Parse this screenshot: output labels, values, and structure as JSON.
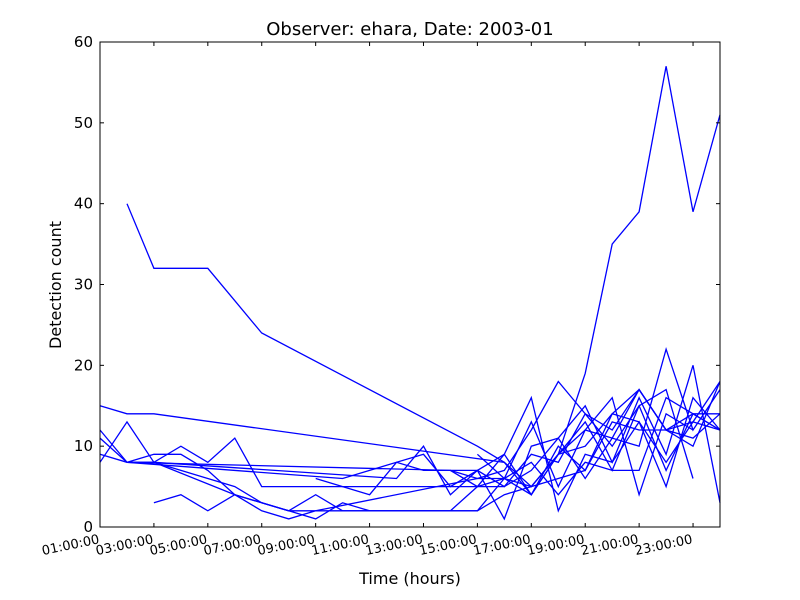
{
  "chart_data": {
    "type": "line",
    "title": "Observer: ehara, Date: 2003-01",
    "xlabel": "Time (hours)",
    "ylabel": "Detection count",
    "xlim": [
      1,
      24
    ],
    "ylim": [
      0,
      60
    ],
    "yticks": [
      0,
      10,
      20,
      30,
      40,
      50,
      60
    ],
    "xticks": [
      {
        "value": 1,
        "label": "01:00:00"
      },
      {
        "value": 3,
        "label": "03:00:00"
      },
      {
        "value": 5,
        "label": "05:00:00"
      },
      {
        "value": 7,
        "label": "07:00:00"
      },
      {
        "value": 9,
        "label": "09:00:00"
      },
      {
        "value": 11,
        "label": "11:00:00"
      },
      {
        "value": 13,
        "label": "13:00:00"
      },
      {
        "value": 15,
        "label": "15:00:00"
      },
      {
        "value": 17,
        "label": "17:00:00"
      },
      {
        "value": 19,
        "label": "19:00:00"
      },
      {
        "value": 21,
        "label": "21:00:00"
      },
      {
        "value": 23,
        "label": "23:00:00"
      }
    ],
    "grid": false,
    "line_color": "#0000ff",
    "series": [
      {
        "x": [
          2,
          3,
          4,
          5,
          6,
          7,
          15,
          16,
          17,
          18,
          19,
          20,
          21,
          22,
          23,
          24
        ],
        "y": [
          40,
          32,
          32,
          32,
          28,
          24,
          10,
          8,
          5,
          9,
          19,
          35,
          39,
          57,
          39,
          51
        ]
      },
      {
        "x": [
          1,
          2,
          3,
          16,
          17,
          18,
          19,
          20,
          21,
          22,
          23,
          24
        ],
        "y": [
          15,
          14,
          14,
          8,
          4,
          10,
          7,
          14,
          17,
          12,
          14,
          12
        ]
      },
      {
        "x": [
          1,
          2,
          3,
          4,
          5,
          6,
          7,
          8,
          9,
          15,
          16,
          17,
          18,
          19,
          20,
          21,
          22,
          23,
          24
        ],
        "y": [
          12,
          8,
          9,
          9,
          7,
          4,
          2,
          1,
          2,
          6,
          7,
          12,
          18,
          14,
          12,
          17,
          12,
          13,
          18
        ]
      },
      {
        "x": [
          1,
          2,
          3,
          4,
          5,
          6,
          7,
          15,
          16,
          17,
          18,
          19,
          20,
          21,
          22,
          23,
          24
        ],
        "y": [
          8,
          13,
          8,
          10,
          8,
          11,
          5,
          5,
          5,
          7,
          11,
          15,
          8,
          16,
          9,
          20,
          3
        ]
      },
      {
        "x": [
          3,
          4,
          5,
          6,
          7,
          8,
          9,
          10,
          11,
          12,
          13,
          14,
          15,
          16,
          17,
          18,
          19,
          20,
          21,
          22,
          23
        ],
        "y": [
          3,
          4,
          2,
          4,
          3,
          2,
          2,
          2,
          2,
          2,
          2,
          2,
          2,
          6,
          5,
          9,
          13,
          7,
          15,
          17,
          6
        ]
      },
      {
        "x": [
          1,
          2,
          14,
          15,
          16,
          17,
          18,
          19,
          20,
          21,
          22,
          23,
          24
        ],
        "y": [
          11,
          8,
          7,
          6,
          6,
          8,
          4,
          8,
          7,
          7,
          16,
          14,
          12
        ]
      },
      {
        "x": [
          1,
          2,
          3,
          6,
          7,
          8,
          9,
          10,
          11,
          12,
          13,
          14,
          15,
          16,
          17,
          18,
          19,
          20,
          21,
          22,
          23,
          24
        ],
        "y": [
          9,
          8,
          8,
          4,
          3,
          2,
          1,
          3,
          2,
          2,
          2,
          2,
          2,
          4,
          5,
          6,
          7,
          13,
          12,
          12,
          11,
          14
        ]
      },
      {
        "x": [
          2,
          3,
          4,
          5,
          6,
          7,
          8,
          9,
          10,
          11,
          12,
          13,
          14,
          15,
          16,
          17,
          18,
          19,
          20,
          21,
          22,
          23,
          24
        ],
        "y": [
          8,
          8,
          7,
          6,
          5,
          3,
          2,
          4,
          2,
          2,
          2,
          2,
          2,
          5,
          6,
          4,
          9,
          10,
          14,
          13,
          8,
          13,
          12
        ]
      },
      {
        "x": [
          9,
          11,
          12,
          13,
          14,
          15,
          16,
          17,
          18,
          19,
          20,
          21,
          22,
          23,
          24
        ],
        "y": [
          6,
          4,
          8,
          9,
          5,
          7,
          5,
          9,
          8,
          14,
          10,
          15,
          7,
          14,
          14
        ]
      },
      {
        "x": [
          3,
          12,
          13,
          14,
          15,
          16,
          17,
          18,
          19,
          20,
          21,
          22,
          23,
          24
        ],
        "y": [
          8,
          6,
          10,
          4,
          7,
          9,
          16,
          2,
          9,
          8,
          13,
          5,
          16,
          12
        ]
      },
      {
        "x": [
          2,
          10,
          11,
          12,
          13,
          14,
          15,
          16,
          17,
          18,
          19,
          20,
          21,
          22,
          23,
          24
        ],
        "y": [
          8,
          6,
          7,
          8,
          7,
          7,
          5,
          9,
          4,
          9,
          12,
          11,
          17,
          12,
          10,
          18
        ]
      },
      {
        "x": [
          14,
          15,
          16,
          17,
          18,
          19,
          20,
          21,
          22,
          23,
          24
        ],
        "y": [
          7,
          7,
          1,
          10,
          11,
          6,
          11,
          10,
          22,
          12,
          17
        ]
      },
      {
        "x": [
          15,
          16,
          17,
          18,
          19,
          20,
          21,
          22,
          23
        ],
        "y": [
          9,
          6,
          13,
          5,
          12,
          16,
          4,
          14,
          12
        ]
      }
    ]
  }
}
